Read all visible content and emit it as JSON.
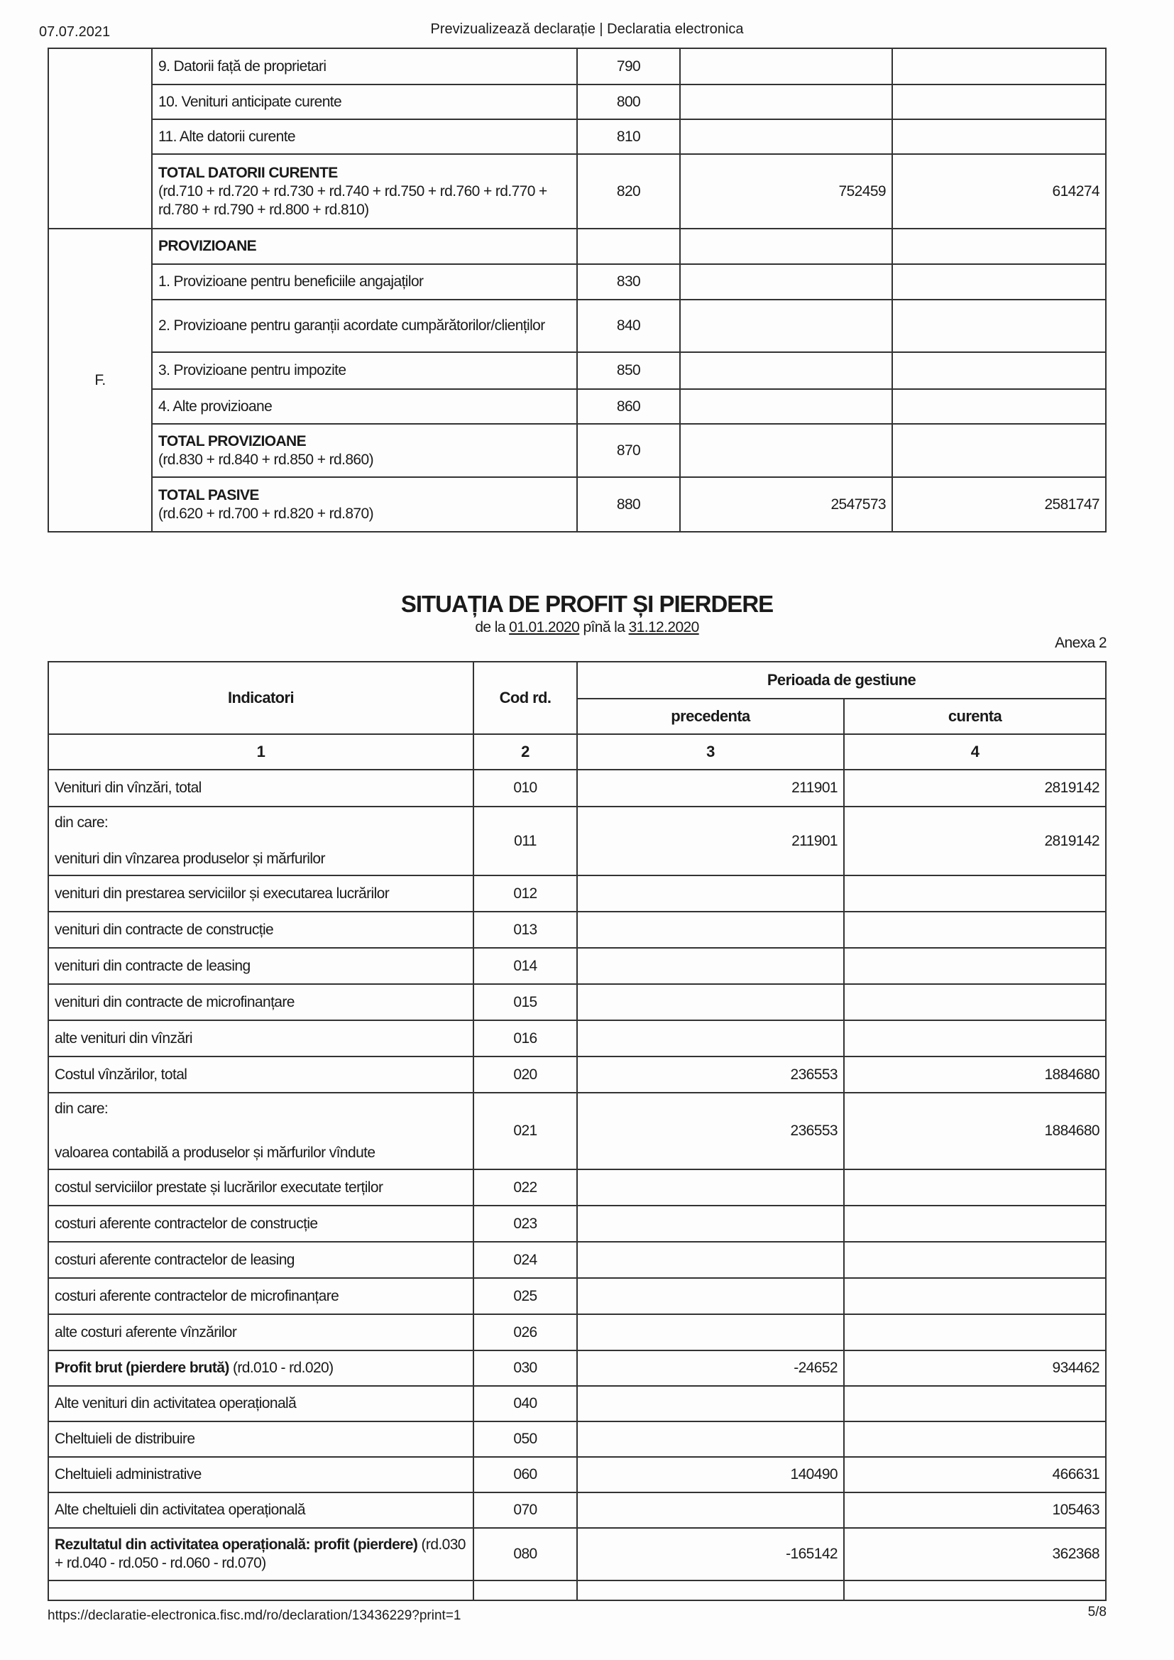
{
  "header": {
    "date": "07.07.2021",
    "title": "Previzualizează declarație | Declaratia electronica"
  },
  "balance_rows": [
    {
      "section": "",
      "bold": "",
      "text": "9. Datorii față de proprietari",
      "code": "790",
      "prev": "",
      "curr": ""
    },
    {
      "section": "",
      "bold": "",
      "text": "10. Venituri anticipate curente",
      "code": "800",
      "prev": "",
      "curr": ""
    },
    {
      "section": "",
      "bold": "",
      "text": "11. Alte datorii curente",
      "code": "810",
      "prev": "",
      "curr": ""
    },
    {
      "section": "",
      "bold": "TOTAL DATORII CURENTE",
      "text": "(rd.710 + rd.720 + rd.730 + rd.740 + rd.750 + rd.760 + rd.770 + rd.780 + rd.790 + rd.800 + rd.810)",
      "code": "820",
      "prev": "752459",
      "curr": "614274"
    },
    {
      "section": "F.",
      "bold": "PROVIZIOANE",
      "text": "",
      "code": "",
      "prev": "",
      "curr": ""
    },
    {
      "section": "",
      "bold": "",
      "text": "1. Provizioane pentru beneficiile angajaților",
      "code": "830",
      "prev": "",
      "curr": ""
    },
    {
      "section": "",
      "bold": "",
      "text": "2. Provizioane pentru garanții acordate cumpărătorilor/clienților",
      "code": "840",
      "prev": "",
      "curr": ""
    },
    {
      "section": "",
      "bold": "",
      "text": "3. Provizioane pentru impozite",
      "code": "850",
      "prev": "",
      "curr": ""
    },
    {
      "section": "",
      "bold": "",
      "text": "4. Alte provizioane",
      "code": "860",
      "prev": "",
      "curr": ""
    },
    {
      "section": "",
      "bold": "TOTAL PROVIZIOANE",
      "text": "(rd.830 + rd.840 + rd.850 + rd.860)",
      "code": "870",
      "prev": "",
      "curr": ""
    },
    {
      "section": "",
      "bold": "TOTAL PASIVE",
      "text": "(rd.620 + rd.700 + rd.820 + rd.870)",
      "code": "880",
      "prev": "2547573",
      "curr": "2581747"
    }
  ],
  "profit_loss": {
    "title": "SITUAȚIA DE PROFIT ȘI PIERDERE",
    "subtitle_prefix": "de la",
    "date_from": "01.01.2020",
    "subtitle_mid": "pînă la",
    "date_to": "31.12.2020",
    "annex": "Anexa 2",
    "headers": {
      "indicators": "Indicatori",
      "code": "Cod rd.",
      "period": "Perioada de gestiune",
      "previous": "precedenta",
      "current": "curenta"
    },
    "column_numbers": [
      "1",
      "2",
      "3",
      "4"
    ],
    "rows": [
      {
        "pre": "",
        "bold": "",
        "text": "Venituri din vînzări, total",
        "code": "010",
        "prev": "211901",
        "curr": "2819142"
      },
      {
        "pre": "din care:",
        "bold": "",
        "text": "venituri din vînzarea produselor și mărfurilor",
        "code": "011",
        "prev": "211901",
        "curr": "2819142"
      },
      {
        "pre": "",
        "bold": "",
        "text": "venituri din prestarea serviciilor și executarea lucrărilor",
        "code": "012",
        "prev": "",
        "curr": ""
      },
      {
        "pre": "",
        "bold": "",
        "text": "venituri din contracte de construcție",
        "code": "013",
        "prev": "",
        "curr": ""
      },
      {
        "pre": "",
        "bold": "",
        "text": "venituri din contracte de leasing",
        "code": "014",
        "prev": "",
        "curr": ""
      },
      {
        "pre": "",
        "bold": "",
        "text": "venituri din contracte de microfinanțare",
        "code": "015",
        "prev": "",
        "curr": ""
      },
      {
        "pre": "",
        "bold": "",
        "text": "alte venituri din vînzări",
        "code": "016",
        "prev": "",
        "curr": ""
      },
      {
        "pre": "",
        "bold": "",
        "text": "Costul vînzărilor, total",
        "code": "020",
        "prev": "236553",
        "curr": "1884680"
      },
      {
        "pre": "din care:",
        "bold": "",
        "text": "valoarea contabilă a produselor și mărfurilor vîndute",
        "code": "021",
        "prev": "236553",
        "curr": "1884680"
      },
      {
        "pre": "",
        "bold": "",
        "text": "costul serviciilor prestate și lucrărilor executate terților",
        "code": "022",
        "prev": "",
        "curr": ""
      },
      {
        "pre": "",
        "bold": "",
        "text": "costuri aferente contractelor de construcție",
        "code": "023",
        "prev": "",
        "curr": ""
      },
      {
        "pre": "",
        "bold": "",
        "text": "costuri aferente contractelor de leasing",
        "code": "024",
        "prev": "",
        "curr": ""
      },
      {
        "pre": "",
        "bold": "",
        "text": "costuri aferente contractelor de microfinanțare",
        "code": "025",
        "prev": "",
        "curr": ""
      },
      {
        "pre": "",
        "bold": "",
        "text": "alte costuri aferente vînzărilor",
        "code": "026",
        "prev": "",
        "curr": ""
      },
      {
        "pre": "",
        "bold": "Profit brut (pierdere brută)",
        "text": " (rd.010 - rd.020)",
        "code": "030",
        "prev": "-24652",
        "curr": "934462"
      },
      {
        "pre": "",
        "bold": "",
        "text": "Alte venituri din activitatea operațională",
        "code": "040",
        "prev": "",
        "curr": ""
      },
      {
        "pre": "",
        "bold": "",
        "text": "Cheltuieli de distribuire",
        "code": "050",
        "prev": "",
        "curr": ""
      },
      {
        "pre": "",
        "bold": "",
        "text": "Cheltuieli administrative",
        "code": "060",
        "prev": "140490",
        "curr": "466631"
      },
      {
        "pre": "",
        "bold": "",
        "text": "Alte cheltuieli din activitatea operațională",
        "code": "070",
        "prev": "",
        "curr": "105463"
      },
      {
        "pre": "",
        "bold": "Rezultatul din activitatea operațională: profit (pierdere)",
        "text": " (rd.030 + rd.040 - rd.050 - rd.060 - rd.070)",
        "code": "080",
        "prev": "-165142",
        "curr": "362368"
      }
    ]
  },
  "footer": {
    "url": "https://declaratie-electronica.fisc.md/ro/declaration/13436229?print=1",
    "page": "5/8"
  }
}
